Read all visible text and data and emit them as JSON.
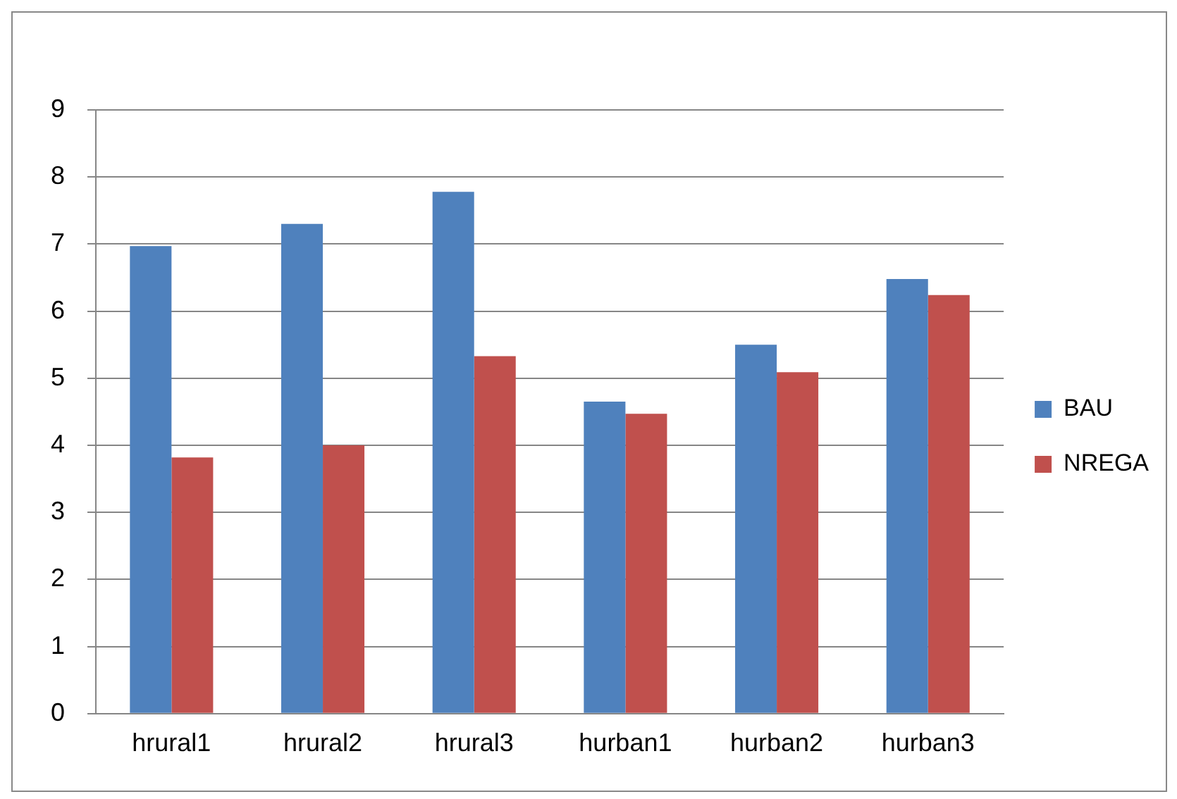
{
  "chart_data": {
    "type": "bar",
    "categories": [
      "hrural1",
      "hrural2",
      "hrural3",
      "hurban1",
      "hurban2",
      "hurban3"
    ],
    "series": [
      {
        "name": "BAU",
        "color": "#4f81bd",
        "values": [
          6.97,
          7.3,
          7.78,
          4.65,
          5.5,
          6.48
        ]
      },
      {
        "name": "NREGA",
        "color": "#c0504d",
        "values": [
          3.82,
          4.0,
          5.33,
          4.47,
          5.09,
          6.24
        ]
      }
    ],
    "ylim": [
      0,
      9
    ],
    "yticks": [
      0,
      1,
      2,
      3,
      4,
      5,
      6,
      7,
      8,
      9
    ],
    "grid": "y",
    "legend": "right"
  }
}
